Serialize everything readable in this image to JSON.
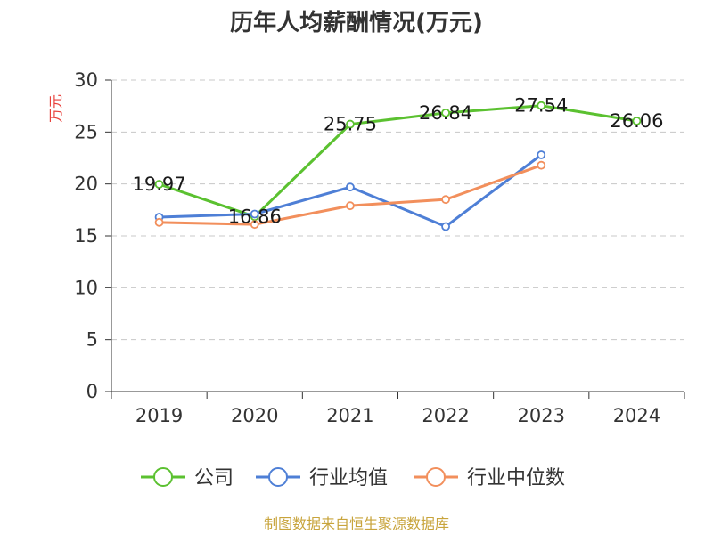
{
  "chart_data": {
    "type": "line",
    "title": "历年人均薪酬情况(万元)",
    "ylabel": "万元",
    "xlabel": "",
    "ylim": [
      0,
      30
    ],
    "yticks": [
      0,
      5,
      10,
      15,
      20,
      25,
      30
    ],
    "categories": [
      "2019",
      "2020",
      "2021",
      "2022",
      "2023",
      "2024"
    ],
    "grid": true,
    "legend_position": "bottom",
    "series": [
      {
        "name": "公司",
        "color": "#5bc130",
        "values": [
          19.97,
          16.86,
          25.75,
          26.84,
          27.54,
          26.06
        ],
        "labels": [
          "19.97",
          "16.86",
          "25.75",
          "26.84",
          "27.54",
          "26.06"
        ]
      },
      {
        "name": "行业均值",
        "color": "#4e7fd6",
        "values": [
          16.8,
          17.1,
          19.7,
          15.9,
          22.8,
          null
        ]
      },
      {
        "name": "行业中位数",
        "color": "#f28f5c",
        "values": [
          16.3,
          16.1,
          17.9,
          18.5,
          21.8,
          null
        ]
      }
    ],
    "source": "制图数据来自恒生聚源数据库"
  }
}
